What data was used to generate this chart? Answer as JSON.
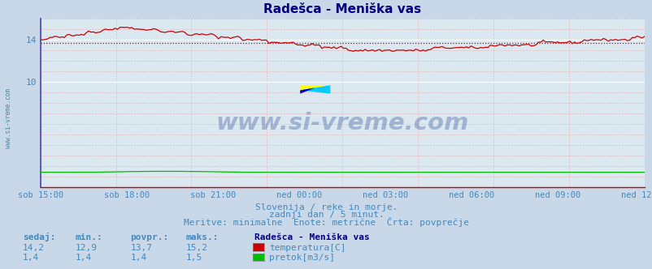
{
  "title": "Radešca - Meniška vas",
  "bg_color": "#c8d8e8",
  "plot_bg_color": "#dce8f0",
  "grid_color_white": "#ffffff",
  "grid_color_pink": "#e8b8b8",
  "x_labels": [
    "sob 15:00",
    "sob 18:00",
    "sob 21:00",
    "ned 00:00",
    "ned 03:00",
    "ned 06:00",
    "ned 09:00",
    "ned 12:00"
  ],
  "y_min": 0,
  "y_max": 16,
  "y_ticks": [
    10,
    14
  ],
  "temp_avg": 13.7,
  "temp_min": 12.9,
  "temp_max": 15.2,
  "temp_current": 14.2,
  "flow_avg": 1.4,
  "flow_min": 1.4,
  "flow_max": 1.5,
  "flow_current": 1.4,
  "footer_line1": "Slovenija / reke in morje.",
  "footer_line2": "zadnji dan / 5 minut.",
  "footer_line3": "Meritve: minimalne  Enote: metrične  Črta: povprečje",
  "legend_title": "Radešca - Meniška vas",
  "label_temp": "temperatura[C]",
  "label_flow": "pretok[m3/s]",
  "col_sedaj": "sedaj:",
  "col_min": "min.:",
  "col_povpr": "povpr.:",
  "col_maks": "maks.:",
  "watermark_text": "www.si-vreme.com",
  "temp_color": "#cc0000",
  "flow_color": "#00bb00",
  "avg_line_color": "#cc0000",
  "title_color": "#000080",
  "spine_left_color": "#4444bb",
  "spine_bottom_color": "#cc0000",
  "text_color": "#4488bb",
  "watermark_color": "#1a3a8a",
  "left_label_color": "#4488aa"
}
